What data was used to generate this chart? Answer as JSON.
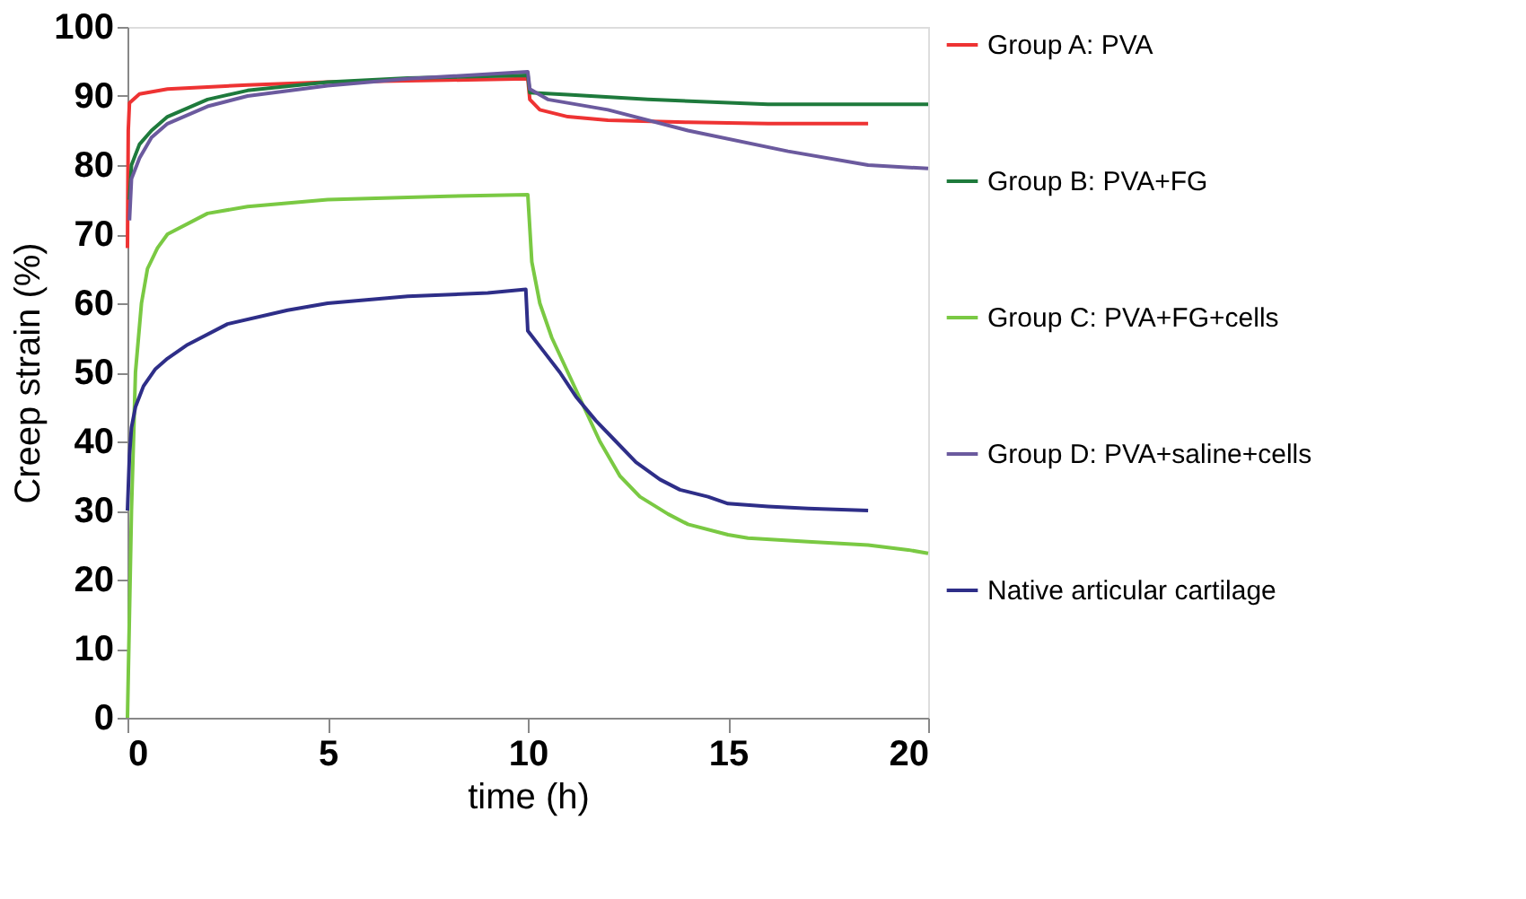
{
  "chart_data": {
    "type": "line",
    "xlabel": "time (h)",
    "ylabel": "Creep strain (%)",
    "xlim": [
      0,
      20
    ],
    "xticks": [
      0,
      5,
      10,
      15,
      20
    ],
    "ylim": [
      0,
      100
    ],
    "yticks": [
      0,
      10,
      20,
      30,
      40,
      50,
      60,
      70,
      80,
      90,
      100
    ],
    "grid": false,
    "legend": "right",
    "marker": "none",
    "line_style": "solid",
    "series": [
      {
        "name": "Group A: PVA",
        "color": "#ee3333",
        "x": [
          0,
          0.02,
          0.05,
          0.3,
          1,
          3,
          5,
          8,
          10,
          10.05,
          10.3,
          11,
          12,
          14,
          16,
          18.5
        ],
        "values": [
          68,
          85,
          89,
          90.3,
          91,
          91.6,
          92,
          92.3,
          92.5,
          89.5,
          88,
          87,
          86.5,
          86.2,
          86,
          86
        ]
      },
      {
        "name": "Group B: PVA+FG",
        "color": "#1e7a3c",
        "x": [
          0.05,
          0.1,
          0.3,
          0.6,
          1,
          2,
          3,
          5,
          7,
          10,
          10.05,
          11,
          13,
          16,
          18,
          20
        ],
        "values": [
          75,
          80,
          83,
          85,
          87,
          89.5,
          90.8,
          92,
          92.6,
          93,
          90.5,
          90.2,
          89.5,
          88.8,
          88.8,
          88.8
        ]
      },
      {
        "name": "Group C: PVA+FG+cells",
        "color": "#7ac943",
        "x": [
          0,
          0.1,
          0.2,
          0.35,
          0.5,
          0.75,
          1,
          2,
          3,
          5,
          8,
          10,
          10.1,
          10.3,
          10.6,
          11,
          11.4,
          11.8,
          12.3,
          12.8,
          13.5,
          14,
          15,
          15.5,
          17,
          18.5,
          19.5,
          20
        ],
        "values": [
          0,
          30,
          50,
          60,
          65,
          68,
          70,
          73,
          74,
          75,
          75.5,
          75.7,
          66,
          60,
          55,
          50,
          45,
          40,
          35,
          32,
          29.5,
          28,
          26.5,
          26,
          25.5,
          25,
          24.3,
          23.8
        ]
      },
      {
        "name": "Group D: PVA+saline+cells",
        "color": "#6b5a9e",
        "x": [
          0.05,
          0.1,
          0.3,
          0.6,
          1,
          2,
          3,
          5,
          7,
          10,
          10.05,
          10.5,
          12,
          14,
          16.5,
          18.5,
          20
        ],
        "values": [
          72,
          78,
          81,
          84,
          86,
          88.5,
          90,
          91.5,
          92.5,
          93.5,
          91,
          89.5,
          88,
          85,
          82,
          80,
          79.5
        ]
      },
      {
        "name": "Native articular cartilage",
        "color": "#2e2e88",
        "x": [
          0,
          0.05,
          0.1,
          0.2,
          0.4,
          0.7,
          1,
          1.5,
          2.5,
          4,
          5,
          7,
          9,
          9.95,
          10,
          10.4,
          10.8,
          11.2,
          11.7,
          12.2,
          12.7,
          13.3,
          13.8,
          14.5,
          15,
          16,
          17,
          18.5
        ],
        "values": [
          30,
          38,
          42,
          45,
          48,
          50.5,
          52,
          54,
          57,
          59,
          60,
          61,
          61.5,
          62,
          56,
          53,
          50,
          46.5,
          43,
          40,
          37,
          34.5,
          33,
          32,
          31,
          30.6,
          30.3,
          30
        ]
      }
    ]
  }
}
